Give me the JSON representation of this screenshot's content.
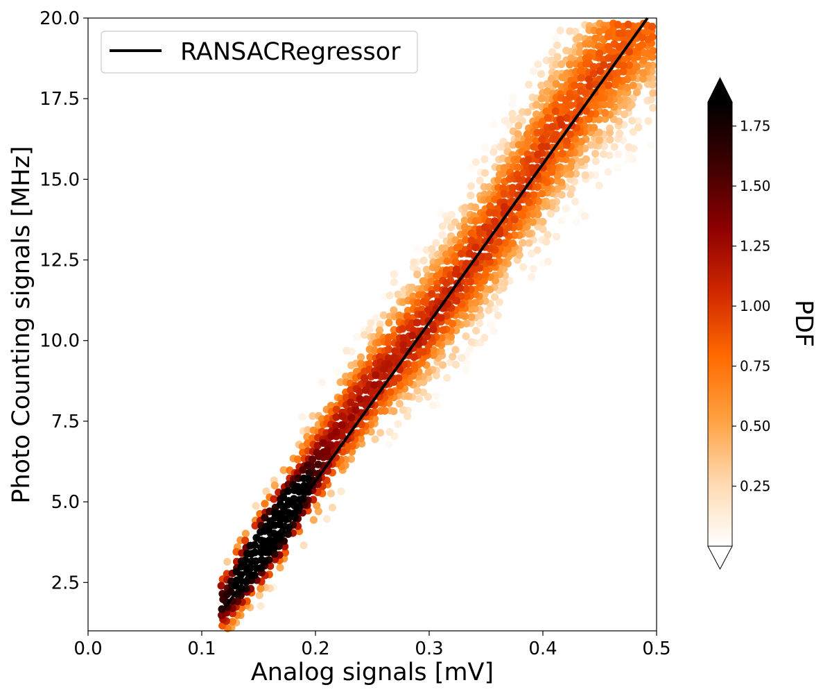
{
  "chart_data": {
    "type": "scatter",
    "subtype": "density-colored hexbin scatter with fitted regression line",
    "xlabel": "Analog signals [mV]",
    "ylabel": "Photo Counting signals [MHz]",
    "xlim": [
      0.0,
      0.5
    ],
    "ylim": [
      1.0,
      20.0
    ],
    "x_ticks": [
      "0.0",
      "0.1",
      "0.2",
      "0.3",
      "0.4",
      "0.5"
    ],
    "y_ticks": [
      "2.5",
      "5.0",
      "7.5",
      "10.0",
      "12.5",
      "15.0",
      "17.5",
      "20.0"
    ],
    "grid": false,
    "legend": {
      "placement": "top-left",
      "entries": [
        "RANSACRegressor"
      ]
    },
    "regression_line": {
      "name": "RANSACRegressor",
      "color": "#000000",
      "points": [
        [
          0.12,
          1.7
        ],
        [
          0.492,
          20.0
        ]
      ]
    },
    "density_cloud": {
      "ridge": [
        [
          0.12,
          1.8
        ],
        [
          0.16,
          3.9
        ],
        [
          0.2,
          6.2
        ],
        [
          0.25,
          8.6
        ],
        [
          0.3,
          10.6
        ],
        [
          0.35,
          13.0
        ],
        [
          0.4,
          15.8
        ],
        [
          0.45,
          18.3
        ],
        [
          0.49,
          20.0
        ]
      ],
      "peak_density_at": [
        0.165,
        4.0
      ],
      "colormap": "gist_heat_r"
    },
    "colorbar": {
      "label": "PDF",
      "range": [
        0.0,
        1.85
      ],
      "ticks": [
        "0.25",
        "0.50",
        "0.75",
        "1.00",
        "1.25",
        "1.50",
        "1.75"
      ],
      "extend": "both",
      "colors": [
        "#ffffff",
        "#ffd9b0",
        "#ffa040",
        "#ff6a00",
        "#d02800",
        "#8e0000",
        "#3e0000",
        "#000000"
      ]
    }
  }
}
